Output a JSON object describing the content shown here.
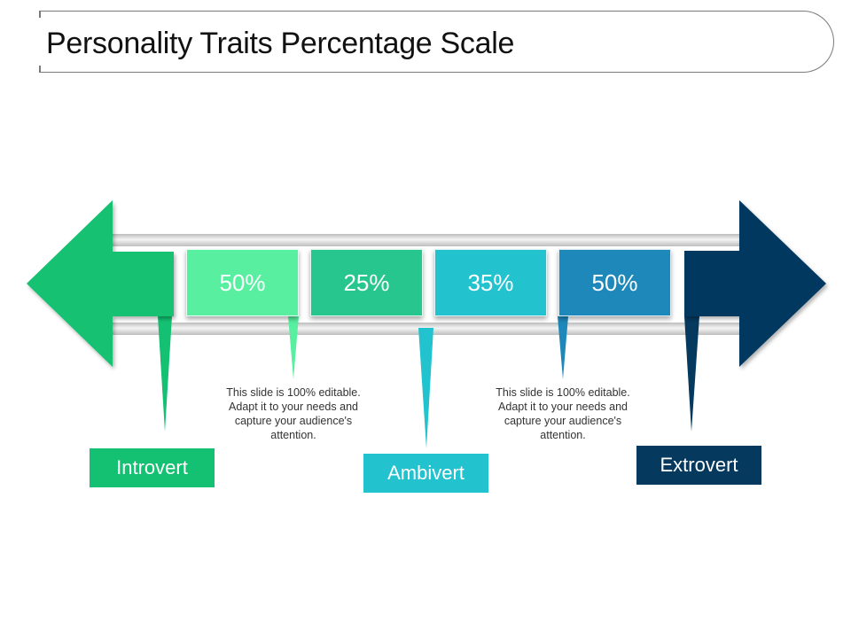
{
  "title": "Personality Traits Percentage Scale",
  "scale_items": [
    {
      "value": "50%",
      "color": "#58EFA0"
    },
    {
      "value": "25%",
      "color": "#27C68E"
    },
    {
      "value": "35%",
      "color": "#22C2CE"
    },
    {
      "value": "50%",
      "color": "#1E88BA"
    }
  ],
  "labels": {
    "introvert": "Introvert",
    "ambivert": "Ambivert",
    "extrovert": "Extrovert"
  },
  "notes": [
    "This slide is 100% editable. Adapt it to your needs and capture your audience's attention.",
    "This slide is 100% editable. Adapt it to your needs and capture your audience's attention."
  ],
  "colors": {
    "introvert_green": "#14C172",
    "ambivert_teal": "#22C2CE",
    "extrovert_navy": "#05395E",
    "bar_gray": "#D5D5D5"
  }
}
